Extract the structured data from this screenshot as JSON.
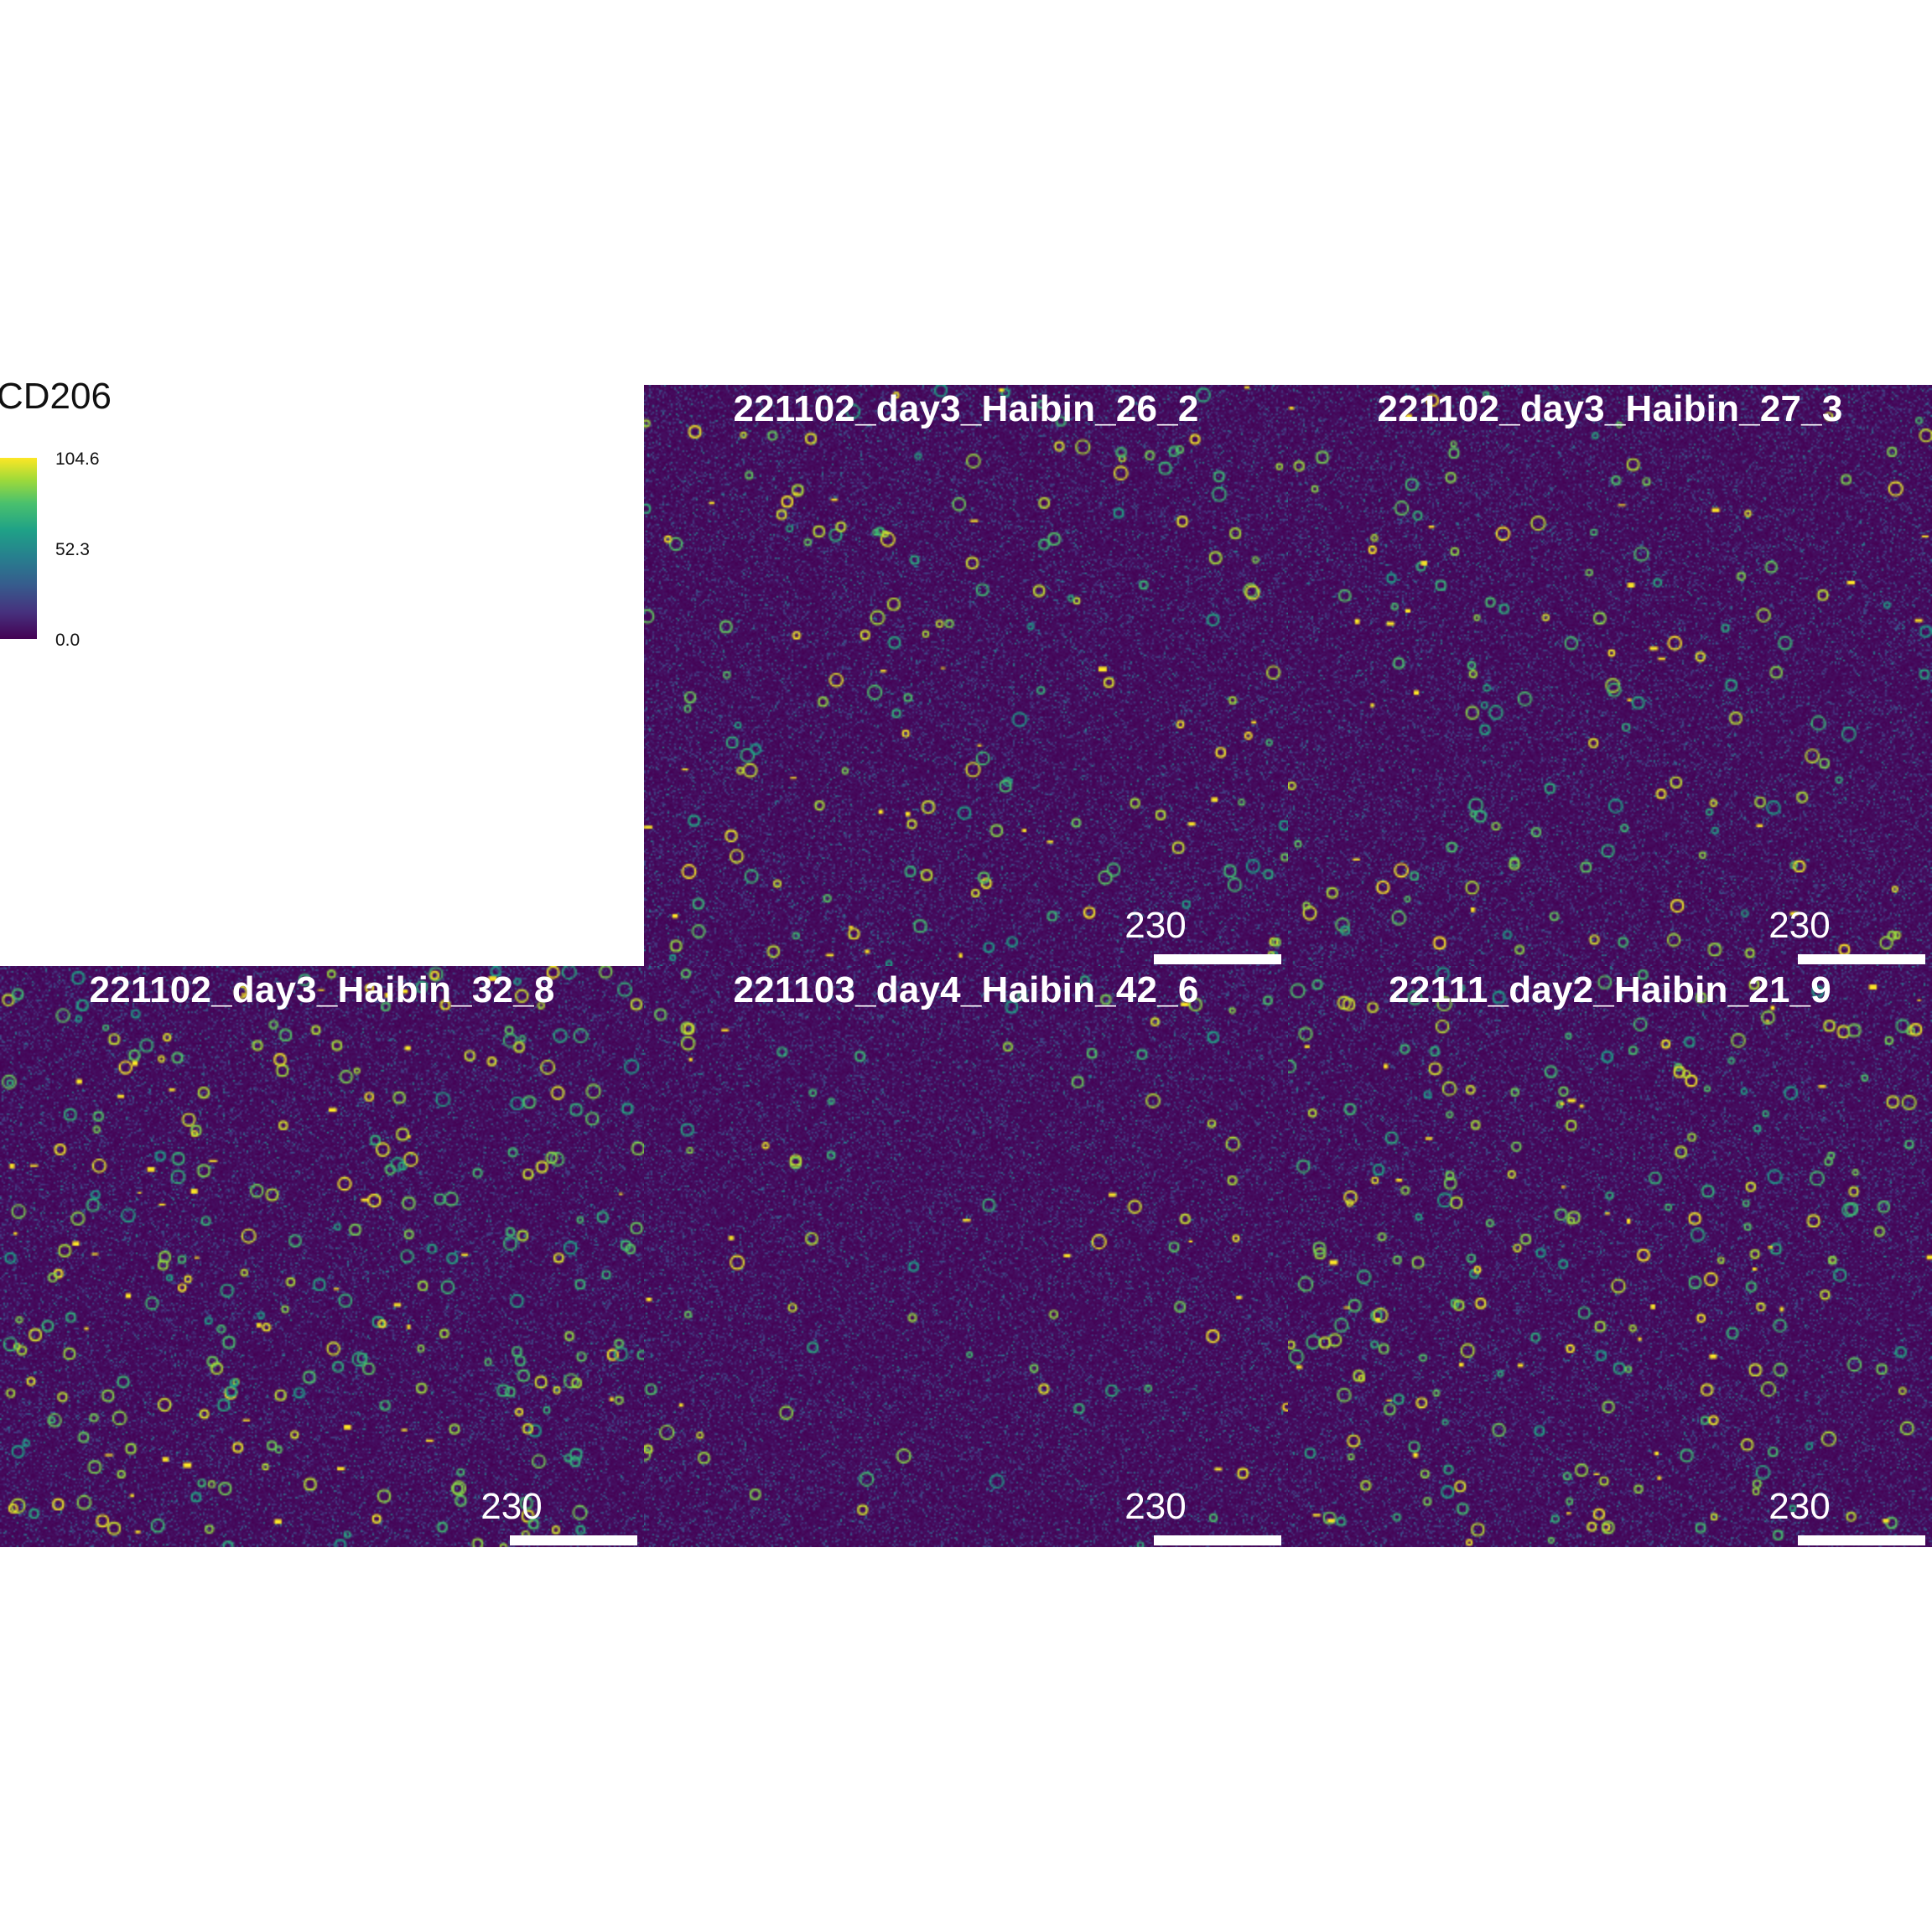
{
  "legend": {
    "title": "CD206",
    "ticks": [
      "104.6",
      "52.3",
      "0.0"
    ],
    "colors": [
      "#440154",
      "#46327e",
      "#365c8d",
      "#277f8e",
      "#1fa187",
      "#4ac16d",
      "#a0da39",
      "#fde725"
    ]
  },
  "panels": [
    {
      "title": "221102_day3_Haibin_26_2",
      "scale": "230"
    },
    {
      "title": "221102_day3_Haibin_27_3",
      "scale": "230"
    },
    {
      "title": "221102_day3_Haibin_32_8",
      "scale": "230"
    },
    {
      "title": "221103_day4_Haibin_42_6",
      "scale": "230"
    },
    {
      "title": "22111_day2_Haibin_21_9",
      "scale": "230"
    }
  ]
}
